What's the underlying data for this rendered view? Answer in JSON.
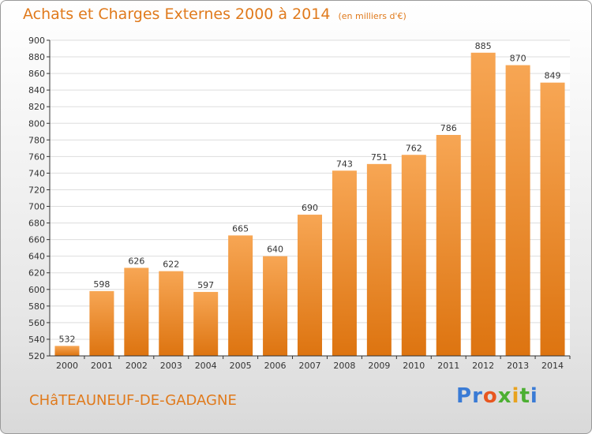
{
  "header": {
    "title": "Achats et Charges Externes 2000 à 2014",
    "subtitle": "(en milliers d'€)"
  },
  "footer": {
    "town": "CHâTEAUNEUF-DE-GADAGNE",
    "brand": "Proxiti",
    "brand_letters": [
      "P",
      "r",
      "o",
      "x",
      "i",
      "t",
      "i"
    ],
    "brand_colors": [
      "#3a7bd5",
      "#3a7bd5",
      "#e8561f",
      "#4caf32",
      "#e8a21f",
      "#4caf32",
      "#3a7bd5"
    ]
  },
  "chart_data": {
    "type": "bar",
    "title": "Achats et Charges Externes 2000 à 2014",
    "subtitle": "(en milliers d'€)",
    "categories": [
      "2000",
      "2001",
      "2002",
      "2003",
      "2004",
      "2005",
      "2006",
      "2007",
      "2008",
      "2009",
      "2010",
      "2011",
      "2012",
      "2013",
      "2014"
    ],
    "values": [
      532,
      598,
      626,
      622,
      597,
      665,
      640,
      690,
      743,
      751,
      762,
      786,
      885,
      870,
      849
    ],
    "ylim": [
      520,
      900
    ],
    "yticks": [
      520,
      540,
      560,
      580,
      600,
      620,
      640,
      660,
      680,
      700,
      720,
      740,
      760,
      780,
      800,
      820,
      840,
      860,
      880,
      900
    ],
    "grid": true,
    "bar_color_top": "#f7a654",
    "bar_color_bottom": "#dd7410",
    "axis_color": "#333333",
    "grid_color": "#dddddd"
  }
}
